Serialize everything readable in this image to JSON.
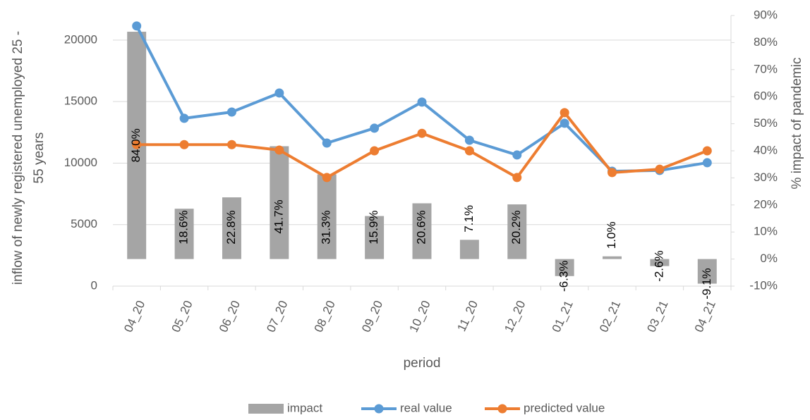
{
  "chart_data": {
    "type": "combo",
    "categories": [
      "04_20",
      "05_20",
      "06_20",
      "07_20",
      "08_20",
      "09_20",
      "10_20",
      "11_20",
      "12_20",
      "01_21",
      "02_21",
      "03_21",
      "04_21"
    ],
    "series": [
      {
        "name": "impact",
        "type": "bar",
        "axis": "y2",
        "color": "#a5a5a5",
        "values": [
          84.0,
          18.6,
          22.8,
          41.7,
          31.3,
          15.9,
          20.6,
          7.1,
          20.2,
          -6.3,
          1.0,
          -2.6,
          -9.1
        ],
        "value_labels": [
          "84.0%",
          "18.6%",
          "22.8%",
          "41.7%",
          "31.3%",
          "15.9%",
          "20.6%",
          "7.1%",
          "20.2%",
          "-6.3%",
          "1.0%",
          "-2.6%",
          "-9.1%"
        ]
      },
      {
        "name": "real value",
        "type": "line",
        "color": "#5b9bd5",
        "values": [
          21150,
          13640,
          14150,
          15700,
          11630,
          12840,
          14960,
          11860,
          10660,
          13240,
          9340,
          9400,
          10030
        ]
      },
      {
        "name": "predicted value",
        "type": "line",
        "color": "#ed7d31",
        "values": [
          11500,
          11500,
          11500,
          11060,
          8830,
          11000,
          12420,
          11000,
          8830,
          14100,
          9230,
          9500,
          11000
        ]
      }
    ],
    "x_label": "period",
    "y_label": [
      "inflow of newly registered unemployed 25 -",
      "55 years"
    ],
    "y2_label": "% impact of pandemic",
    "ylim": [
      0,
      22000
    ],
    "yticks": [
      0,
      5000,
      10000,
      15000,
      20000
    ],
    "y2lim": [
      -10,
      90
    ],
    "y2ticks": [
      {
        "value": -10,
        "label": "-10%"
      },
      {
        "value": 0,
        "label": "0%"
      },
      {
        "value": 10,
        "label": "10%"
      },
      {
        "value": 20,
        "label": "20%"
      },
      {
        "value": 30,
        "label": "30%"
      },
      {
        "value": 40,
        "label": "40%"
      },
      {
        "value": 50,
        "label": "50%"
      },
      {
        "value": 60,
        "label": "60%"
      },
      {
        "value": 70,
        "label": "70%"
      },
      {
        "value": 80,
        "label": "80%"
      },
      {
        "value": 90,
        "label": "90%"
      }
    ],
    "grid": true,
    "legend": "bottom"
  }
}
